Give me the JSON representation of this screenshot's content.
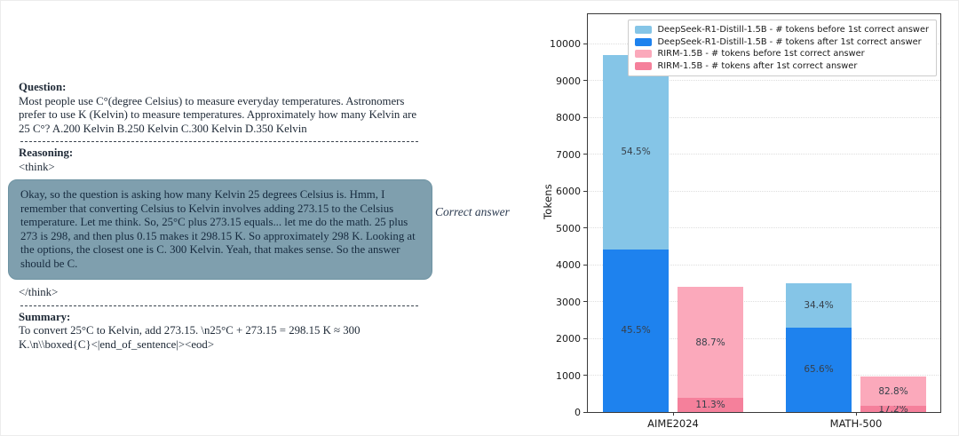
{
  "document": {
    "question_heading": "Question:",
    "question_text": "Most people use C°(degree Celsius) to measure everyday temperatures. Astronomers prefer to use K (Kelvin) to measure temperatures. Approximately how many Kelvin are 25 C°? A.200 Kelvin  B.250 Kelvin  C.300 Kelvin  D.350 Kelvin",
    "reasoning_heading": "Reasoning:",
    "think_open": "<think>",
    "reasoning_text": "Okay, so the question is asking how many Kelvin 25 degrees Celsius is. Hmm, I remember that converting Celsius to Kelvin involves adding 273.15 to the Celsius temperature. Let me think. So, 25°C plus 273.15 equals... let me do the math. 25 plus 273 is 298, and then plus 0.15 makes it 298.15 K. So approximately 298 K. Looking at the options, the closest one is C. 300 Kelvin. Yeah, that makes sense. So the answer should be C.",
    "think_close": "</think>",
    "summary_heading": "Summary:",
    "summary_text": "To convert 25°C to Kelvin, add 273.15. \\n25°C + 273.15 = 298.15 K ≈ 300 K.\\n\\\\boxed{C}<|end_of_sentence|><eod>",
    "correct_answer_label": "Correct answer"
  },
  "chart_data": {
    "type": "bar",
    "stacked": true,
    "title": "",
    "xlabel": "",
    "ylabel": "Tokens",
    "ylim": [
      0,
      10800
    ],
    "yticks": [
      0,
      1000,
      2000,
      3000,
      4000,
      5000,
      6000,
      7000,
      8000,
      9000,
      10000
    ],
    "grid": "horizontal-dotted",
    "legend_position": "upper right",
    "categories": [
      "AIME2024",
      "MATH-500"
    ],
    "legend": [
      {
        "label": "DeepSeek-R1-Distill-1.5B - # tokens before 1st correct answer",
        "color": "#85C5E7"
      },
      {
        "label": "DeepSeek-R1-Distill-1.5B - # tokens after 1st correct answer",
        "color": "#1E82EE"
      },
      {
        "label": "RIRM-1.5B - # tokens before 1st correct answer",
        "color": "#FBA9BB"
      },
      {
        "label": "RIRM-1.5B - # tokens after 1st correct answer",
        "color": "#F5809B"
      }
    ],
    "groups": [
      {
        "category": "AIME2024",
        "bars": [
          {
            "model": "DeepSeek-R1-Distill-1.5B",
            "total_tokens": 9700,
            "segments": [
              {
                "name": "tokens after 1st correct answer",
                "value": 4414,
                "pct_label": "45.5%",
                "color": "#1E82EE"
              },
              {
                "name": "tokens before 1st correct answer",
                "value": 5286,
                "pct_label": "54.5%",
                "color": "#85C5E7"
              }
            ]
          },
          {
            "model": "RIRM-1.5B",
            "total_tokens": 3400,
            "segments": [
              {
                "name": "tokens after 1st correct answer",
                "value": 384,
                "pct_label": "11.3%",
                "color": "#F5809B"
              },
              {
                "name": "tokens before 1st correct answer",
                "value": 3016,
                "pct_label": "88.7%",
                "color": "#FBA9BB"
              }
            ]
          }
        ]
      },
      {
        "category": "MATH-500",
        "bars": [
          {
            "model": "DeepSeek-R1-Distill-1.5B",
            "total_tokens": 3500,
            "segments": [
              {
                "name": "tokens after 1st correct answer",
                "value": 2296,
                "pct_label": "65.6%",
                "color": "#1E82EE"
              },
              {
                "name": "tokens before 1st correct answer",
                "value": 1204,
                "pct_label": "34.4%",
                "color": "#85C5E7"
              }
            ]
          },
          {
            "model": "RIRM-1.5B",
            "total_tokens": 960,
            "segments": [
              {
                "name": "tokens after 1st correct answer",
                "value": 165,
                "pct_label": "17.2%",
                "color": "#F5809B"
              },
              {
                "name": "tokens before 1st correct answer",
                "value": 795,
                "pct_label": "82.8%",
                "color": "#FBA9BB"
              }
            ]
          }
        ]
      }
    ]
  }
}
